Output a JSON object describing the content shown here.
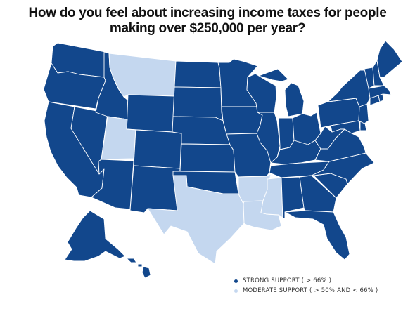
{
  "title": {
    "line1": "How do you feel about increasing income taxes for people",
    "line2": "making over $250,000 per year?"
  },
  "legend": [
    {
      "key": "strong",
      "label": "STRONG SUPPORT ( > 66% )",
      "color": "#12478c"
    },
    {
      "key": "moderate",
      "label": "MODERATE SUPPORT ( > 50% AND < 66% )",
      "color": "#c4d7ef"
    }
  ],
  "states": {
    "strong": [
      "Washington",
      "Oregon",
      "California",
      "Nevada",
      "Idaho",
      "Wyoming",
      "Colorado",
      "Arizona",
      "New Mexico",
      "North Dakota",
      "South Dakota",
      "Nebraska",
      "Kansas",
      "Oklahoma",
      "Minnesota",
      "Iowa",
      "Missouri",
      "Wisconsin",
      "Illinois",
      "Michigan",
      "Indiana",
      "Ohio",
      "Kentucky",
      "Tennessee",
      "Alabama",
      "Georgia",
      "Florida",
      "South Carolina",
      "North Carolina",
      "Virginia",
      "West Virginia",
      "Pennsylvania",
      "New York",
      "Maryland",
      "Delaware",
      "New Jersey",
      "Connecticut",
      "Rhode Island",
      "Massachusetts",
      "Vermont",
      "New Hampshire",
      "Maine",
      "Alaska",
      "Hawaii"
    ],
    "moderate": [
      "Montana",
      "Utah",
      "Texas",
      "Arkansas",
      "Louisiana",
      "Mississippi"
    ]
  }
}
